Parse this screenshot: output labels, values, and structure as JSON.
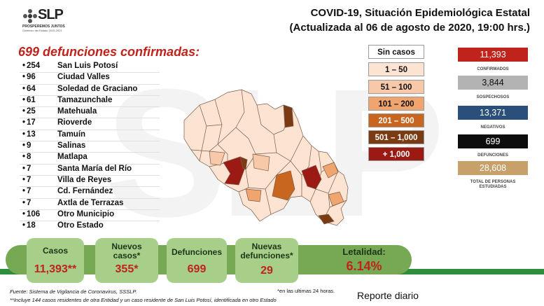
{
  "logo": {
    "text": "SLP",
    "tagline": "PROSPEREMOS JUNTOS",
    "subtitle": "Gobierno del Estado 2015-2021"
  },
  "header": {
    "title_line1": "COVID-19, Situación Epidemiológica Estatal",
    "title_line2": "(Actualizada al 06 de agosto de 2020, 19:00 hrs.)"
  },
  "deaths_heading": "699 defunciones confirmadas:",
  "municipalities": [
    {
      "count": "254",
      "name": "San Luis Potosí"
    },
    {
      "count": "96",
      "name": "Ciudad Valles"
    },
    {
      "count": "64",
      "name": "Soledad de Graciano"
    },
    {
      "count": "61",
      "name": "Tamazunchale"
    },
    {
      "count": "25",
      "name": "Matehuala"
    },
    {
      "count": "17",
      "name": "Rioverde"
    },
    {
      "count": "13",
      "name": "Tamuín"
    },
    {
      "count": "9",
      "name": "Salinas"
    },
    {
      "count": "8",
      "name": "Matlapa"
    },
    {
      "count": "7",
      "name": "Santa María del Río"
    },
    {
      "count": "7",
      "name": "Villa de Reyes"
    },
    {
      "count": "7",
      "name": "Cd. Fernández"
    },
    {
      "count": "7",
      "name": "Axtla de Terrazas"
    },
    {
      "count": "106",
      "name": "Otro Municipio"
    },
    {
      "count": "18",
      "name": "Otro Estado"
    }
  ],
  "legend": [
    {
      "label": "Sin casos",
      "color": "#ffffff",
      "text_color": "#111111"
    },
    {
      "label": "1 – 50",
      "color": "#fde3d2",
      "text_color": "#111111"
    },
    {
      "label": "51 – 100",
      "color": "#f8c9a8",
      "text_color": "#111111"
    },
    {
      "label": "101 – 200",
      "color": "#f0a56f",
      "text_color": "#111111"
    },
    {
      "label": "201 – 500",
      "color": "#c8651f",
      "text_color": "#ffffff"
    },
    {
      "label": "501 – 1,000",
      "color": "#7b3b12",
      "text_color": "#ffffff"
    },
    {
      "label": "+ 1,000",
      "color": "#9c1a14",
      "text_color": "#ffffff"
    }
  ],
  "stats": [
    {
      "value": "11,393",
      "label": "CONFIRMADOS",
      "color": "#c0231c",
      "text_color": "#ffffff"
    },
    {
      "value": "3,844",
      "label": "SOSPECHOSOS",
      "color": "#b3b3b3",
      "text_color": "#111111"
    },
    {
      "value": "13,371",
      "label": "NEGATIVOS",
      "color": "#2a4f7a",
      "text_color": "#ffffff"
    },
    {
      "value": "699",
      "label": "DEFUNCIONES",
      "color": "#0d0d0d",
      "text_color": "#ffffff"
    },
    {
      "value": "28,608",
      "label": "TOTAL DE PERSONAS ESTUDIADAS",
      "color": "#c8a06a",
      "text_color": "#ffffff"
    }
  ],
  "bottom_cards": [
    {
      "label": "Casos",
      "value": "11,393**"
    },
    {
      "label": "Nuevos casos*",
      "value": "355*"
    },
    {
      "label": "Defunciones",
      "value": "699"
    },
    {
      "label": "Nuevas defunciones*",
      "value": "29"
    }
  ],
  "lethality": {
    "label": "Letalidad:",
    "value": "6.14%"
  },
  "footer": {
    "source": "Fuente: Sistema de Vigilancia de Coronavirus, SSSLP.",
    "note": "**Incluye 144 casos residentes de otra Entidad y un caso residente de San Luis Potosí, identificada en otro Estado",
    "note_24h": "*en las ultimas 24 horas.",
    "report": "Reporte diario"
  },
  "colors": {
    "accent_red": "#c0231c",
    "band_green": "#2f8e3c",
    "card_green": "#a7cf8a"
  }
}
